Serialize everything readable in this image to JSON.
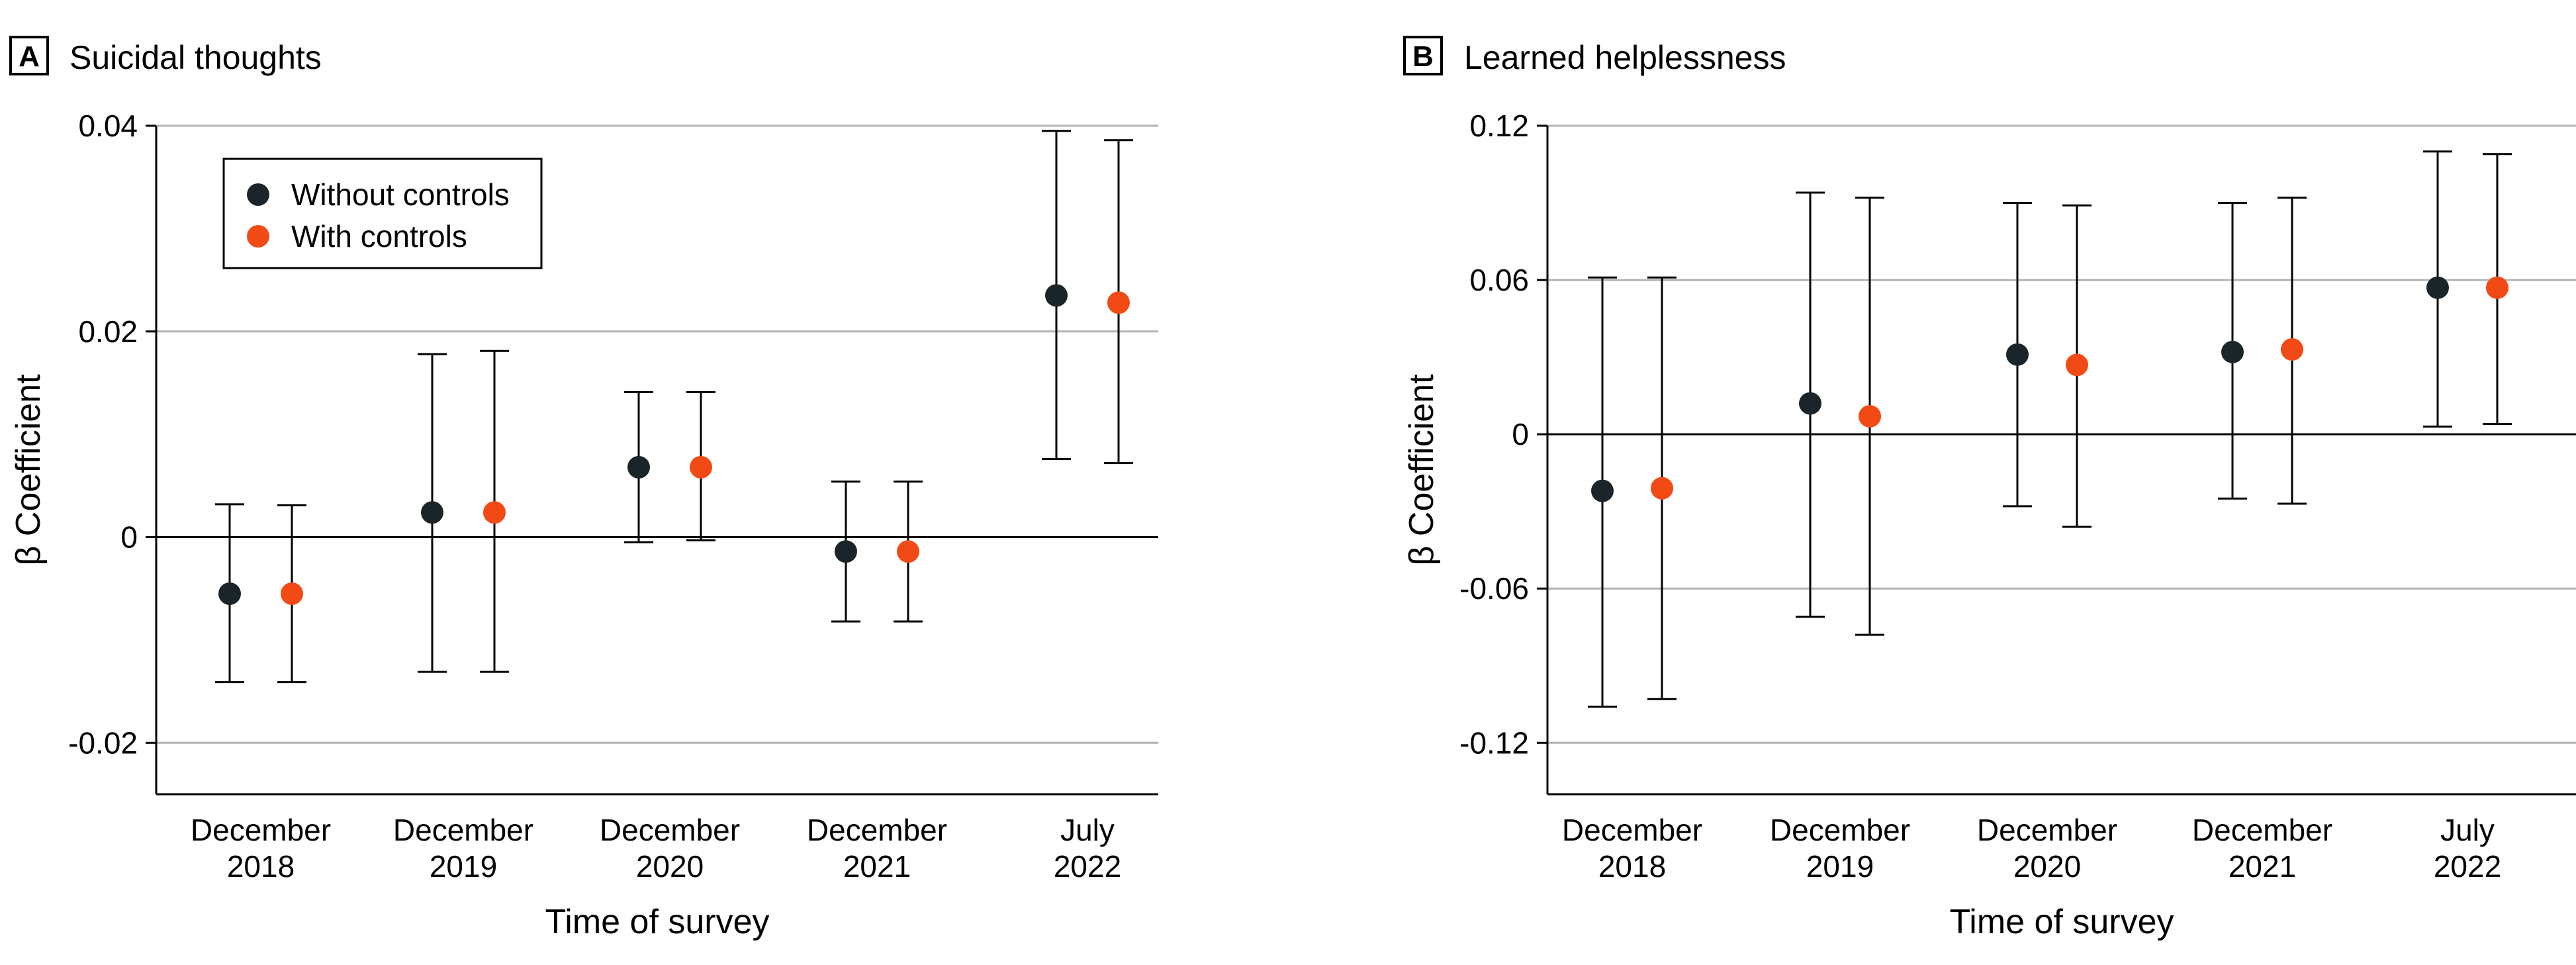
{
  "colors": {
    "without_controls": "#1b2428",
    "with_controls": "#f24a15"
  },
  "chart_data": [
    {
      "type": "scatter",
      "panel_label": "A",
      "title": "Suicidal thoughts",
      "xlabel": "Time of survey",
      "ylabel": "β Coefficient",
      "ylim": [
        -0.025,
        0.04
      ],
      "yticks": [
        -0.02,
        0,
        0.02,
        0.04
      ],
      "ytick_labels": [
        "-0.02",
        "0",
        "0.02",
        "0.04"
      ],
      "categories": [
        [
          "December",
          "2018"
        ],
        [
          "December",
          "2019"
        ],
        [
          "December",
          "2020"
        ],
        [
          "December",
          "2021"
        ],
        [
          "July",
          "2022"
        ]
      ],
      "legend": [
        "Without controls",
        "With controls"
      ],
      "legend_position": "top-left",
      "series": [
        {
          "name": "Without controls",
          "values": [
            -0.0055,
            0.0024,
            0.0068,
            -0.0014,
            0.0235
          ],
          "ci_low": [
            -0.0141,
            -0.0131,
            -0.0005,
            -0.0082,
            0.0076
          ],
          "ci_high": [
            0.0032,
            0.0178,
            0.0141,
            0.0054,
            0.0395
          ]
        },
        {
          "name": "With controls",
          "values": [
            -0.0055,
            0.0024,
            0.0068,
            -0.0014,
            0.0228
          ],
          "ci_low": [
            -0.0141,
            -0.0131,
            -0.0003,
            -0.0082,
            0.0072
          ],
          "ci_high": [
            0.0031,
            0.0181,
            0.0141,
            0.0054,
            0.0386
          ]
        }
      ]
    },
    {
      "type": "scatter",
      "panel_label": "B",
      "title": "Learned helplessness",
      "xlabel": "Time of survey",
      "ylabel": "β Coefficient",
      "ylim": [
        -0.14,
        0.12
      ],
      "yticks": [
        -0.12,
        -0.06,
        0,
        0.06,
        0.12
      ],
      "ytick_labels": [
        "-0.12",
        "-0.06",
        "0",
        "0.06",
        "0.12"
      ],
      "categories": [
        [
          "December",
          "2018"
        ],
        [
          "December",
          "2019"
        ],
        [
          "December",
          "2020"
        ],
        [
          "December",
          "2021"
        ],
        [
          "July",
          "2022"
        ]
      ],
      "series": [
        {
          "name": "Without controls",
          "values": [
            -0.022,
            0.012,
            0.031,
            0.032,
            0.057
          ],
          "ci_low": [
            -0.106,
            -0.071,
            -0.028,
            -0.025,
            0.003
          ],
          "ci_high": [
            0.061,
            0.094,
            0.09,
            0.09,
            0.11
          ]
        },
        {
          "name": "With controls",
          "values": [
            -0.021,
            0.007,
            0.027,
            0.033,
            0.057
          ],
          "ci_low": [
            -0.103,
            -0.078,
            -0.036,
            -0.027,
            0.004
          ],
          "ci_high": [
            0.061,
            0.092,
            0.089,
            0.092,
            0.109
          ]
        }
      ]
    }
  ]
}
